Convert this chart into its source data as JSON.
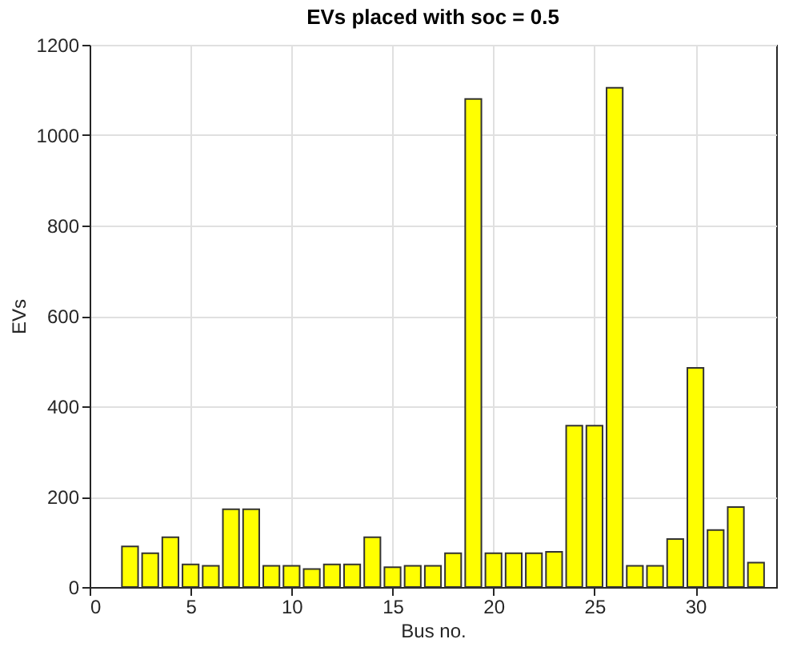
{
  "chart_data": {
    "type": "bar",
    "title": "EVs placed with soc = 0.5",
    "xlabel": "Bus no.",
    "ylabel": "EVs",
    "x": [
      2,
      3,
      4,
      5,
      6,
      7,
      8,
      9,
      10,
      11,
      12,
      13,
      14,
      15,
      16,
      17,
      18,
      19,
      20,
      21,
      22,
      23,
      24,
      25,
      26,
      27,
      28,
      29,
      30,
      31,
      32,
      33
    ],
    "series": [
      {
        "color": "#ffff00",
        "values": [
          90,
          75,
          110,
          50,
          47,
          172,
          172,
          47,
          47,
          40,
          50,
          50,
          110,
          44,
          47,
          47,
          75,
          1080,
          75,
          75,
          75,
          78,
          357,
          357,
          1105,
          47,
          47,
          106,
          485,
          126,
          177,
          54
        ]
      }
    ],
    "xlim": [
      0,
      34
    ],
    "xticks": [
      0,
      5,
      10,
      15,
      20,
      25,
      30
    ],
    "ylim": [
      0,
      1200
    ],
    "yticks": [
      0,
      200,
      400,
      600,
      800,
      1000,
      1200
    ],
    "grid": true
  }
}
